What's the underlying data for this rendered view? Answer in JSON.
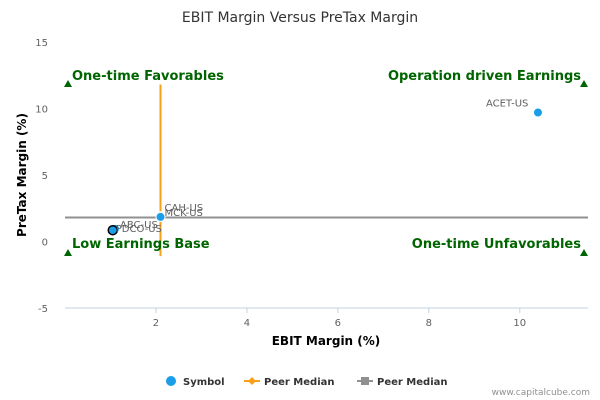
{
  "chart_data": {
    "type": "scatter",
    "title": "EBIT Margin Versus PreTax Margin",
    "xlabel": "EBIT Margin (%)",
    "ylabel": "PreTax Margin (%)",
    "xlim": [
      0,
      11.5
    ],
    "ylim": [
      -5,
      15
    ],
    "xticks": [
      2,
      4,
      6,
      8,
      10
    ],
    "yticks": [
      -5,
      0,
      5,
      10,
      15
    ],
    "grid": "none",
    "series": [
      {
        "name": "Symbol",
        "color": "#1a9ee8",
        "points": [
          {
            "label": "ACET-US",
            "x": 10.4,
            "y": 9.7
          },
          {
            "label": "CAH-US",
            "x": 2.1,
            "y": 1.9
          },
          {
            "label": "MCK-US",
            "x": 2.1,
            "y": 1.85
          },
          {
            "label": "ABC-US",
            "x": 1.1,
            "y": 0.95
          },
          {
            "label": "PDCO-US",
            "x": 1.05,
            "y": 0.85
          }
        ]
      }
    ],
    "peer_median": {
      "x": 2.1,
      "y": 1.8,
      "x_color": "#f7a11a",
      "y_color": "#909090",
      "vertical_line_y_range": [
        -1.1,
        11.8
      ],
      "legend_labels": [
        "Peer Median",
        "Peer Median"
      ]
    },
    "legend": {
      "position": "bottom-center",
      "items": [
        "Symbol",
        "Peer Median",
        "Peer Median"
      ]
    },
    "quadrant_labels": {
      "top_left": "One-time Favorables",
      "top_right": "Operation driven Earnings",
      "bottom_left": "Low Earnings Base",
      "bottom_right": "One-time Unfavorables",
      "color": "#006400"
    },
    "credit": "www.capitalcube.com"
  }
}
